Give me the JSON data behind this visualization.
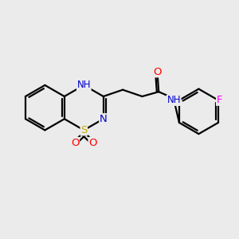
{
  "background_color": "#ebebeb",
  "bond_color": "#000000",
  "atom_colors": {
    "N": "#0000cc",
    "O": "#ff0000",
    "S": "#ccaa00",
    "F": "#ff00ff",
    "H": "#6699aa",
    "C": "#000000"
  },
  "figsize": [
    3.0,
    3.0
  ],
  "dpi": 100,
  "xlim": [
    0,
    10
  ],
  "ylim": [
    0,
    10
  ]
}
